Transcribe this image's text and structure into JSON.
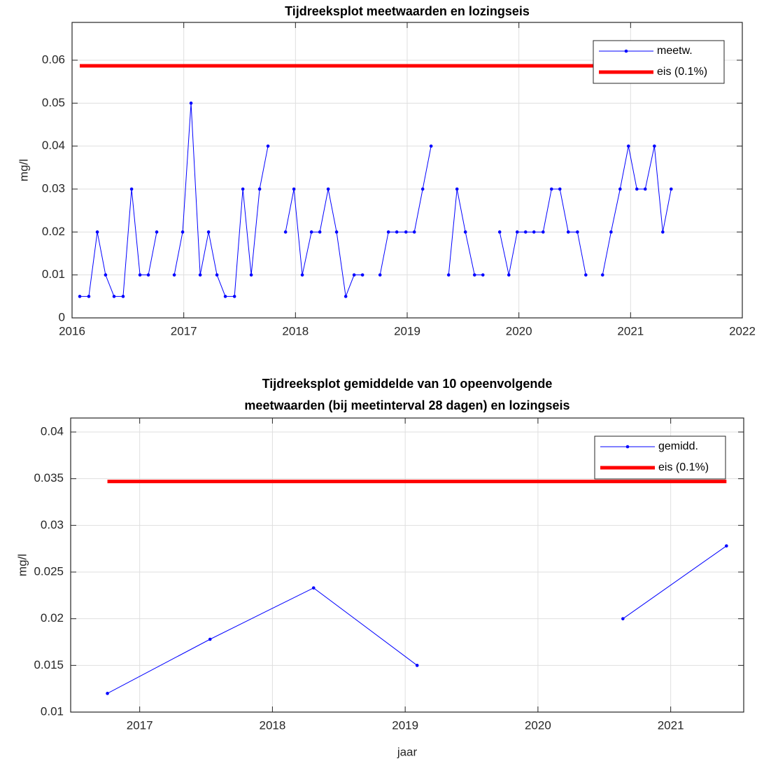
{
  "chart_data": [
    {
      "type": "line",
      "title": "Tijdreeksplot meetwaarden en lozingseis",
      "y_label": "mg/l",
      "xlim": [
        2016,
        2022
      ],
      "xticks": [
        2016,
        2017,
        2018,
        2019,
        2020,
        2021,
        2022
      ],
      "ylim": [
        0,
        0.0688
      ],
      "yticks": [
        0,
        0.01,
        0.02,
        0.03,
        0.04,
        0.05,
        0.06
      ],
      "grid": true,
      "legend": "upper right",
      "series": [
        {
          "name": "meetw.",
          "color": "#0000ff",
          "marker": true,
          "line_width": 1,
          "x": [
            2016.069,
            2016.15,
            2016.226,
            2016.3,
            2016.376,
            2016.457,
            2016.533,
            2016.608,
            2016.683,
            2016.758,
            2016.837,
            2016.915,
            2016.99,
            2017.065,
            2017.147,
            2017.222,
            2017.297,
            2017.372,
            2017.454,
            2017.529,
            2017.604,
            2017.679,
            2017.754,
            2017.833,
            2017.911,
            2017.986,
            2018.061,
            2018.143,
            2018.218,
            2018.293,
            2018.368,
            2018.45,
            2018.525,
            2018.6,
            2018.679,
            2018.757,
            2018.832,
            2018.907,
            2018.989,
            2019.064,
            2019.139,
            2019.214,
            2019.293,
            2019.371,
            2019.446,
            2019.521,
            2019.603,
            2019.678,
            2019.753,
            2019.828,
            2019.91,
            2019.985,
            2020.06,
            2020.135,
            2020.217,
            2020.292,
            2020.367,
            2020.442,
            2020.524,
            2020.599,
            2020.674,
            2020.749,
            2020.825,
            2020.906,
            2020.981,
            2021.056,
            2021.131,
            2021.213,
            2021.288,
            2021.363
          ],
          "values": [
            0.005,
            0.005,
            0.02,
            0.01,
            0.005,
            0.005,
            0.03,
            0.01,
            0.01,
            0.02,
            null,
            0.01,
            0.02,
            0.05,
            0.01,
            0.02,
            0.01,
            0.005,
            0.005,
            0.03,
            0.01,
            0.03,
            0.04,
            null,
            0.02,
            0.03,
            0.01,
            0.02,
            0.02,
            0.03,
            0.02,
            0.005,
            0.01,
            0.01,
            null,
            0.01,
            0.02,
            0.02,
            0.02,
            0.02,
            0.03,
            0.04,
            null,
            0.01,
            0.03,
            0.02,
            0.01,
            0.01,
            null,
            0.02,
            0.01,
            0.02,
            0.02,
            0.02,
            0.02,
            0.03,
            0.03,
            0.02,
            0.02,
            0.01,
            null,
            0.01,
            0.02,
            0.03,
            0.04,
            0.03,
            0.03,
            0.04,
            0.02,
            0.03
          ]
        },
        {
          "name": "eis (0.1%)",
          "color": "#ff0000",
          "marker": false,
          "line_width": 5,
          "x": [
            2016.069,
            2021.363
          ],
          "values": [
            0.0587,
            0.0587
          ]
        }
      ]
    },
    {
      "type": "line",
      "title": [
        "Tijdreeksplot gemiddelde van 10 opeenvolgende",
        "meetwaarden (bij meetinterval 28 dagen) en lozingseis"
      ],
      "x_label": "jaar",
      "y_label": "mg/l",
      "xlim": [
        2016.48,
        2021.55
      ],
      "xticks": [
        2017,
        2018,
        2019,
        2020,
        2021
      ],
      "ylim": [
        0.01,
        0.0415
      ],
      "yticks": [
        0.01,
        0.015,
        0.02,
        0.025,
        0.03,
        0.035,
        0.04
      ],
      "grid": true,
      "legend": "upper right",
      "series": [
        {
          "name": "gemidd.",
          "color": "#0000ff",
          "marker": true,
          "line_width": 1,
          "x": [
            2016.757,
            2017.53,
            2018.31,
            2019.09,
            2019.86,
            2020.64,
            2021.42
          ],
          "values": [
            0.012,
            0.0178,
            0.0233,
            0.015,
            null,
            0.02,
            0.0278
          ]
        },
        {
          "name": "eis (0.1%)",
          "color": "#ff0000",
          "marker": false,
          "line_width": 5,
          "x": [
            2016.757,
            2021.42
          ],
          "values": [
            0.0347,
            0.0347
          ]
        }
      ]
    }
  ]
}
